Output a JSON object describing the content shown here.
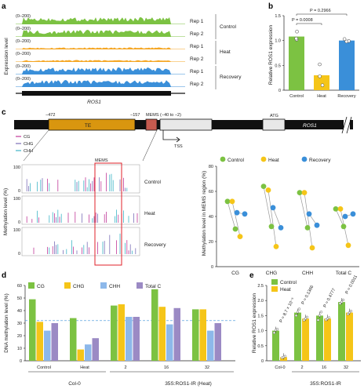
{
  "panels": {
    "a": "a",
    "b": "b",
    "c": "c",
    "d": "d",
    "e": "e"
  },
  "panel_a": {
    "ylabel": "Expression level",
    "range_label": "(0–200)",
    "tracks": [
      {
        "rep": "Rep 1",
        "group": "Control",
        "color": "#7cc242"
      },
      {
        "rep": "Rep 2",
        "group": "Control",
        "color": "#7cc242"
      },
      {
        "rep": "Rep 1",
        "group": "Heat",
        "color": "#f5a623"
      },
      {
        "rep": "Rep 2",
        "group": "Heat",
        "color": "#f5a623"
      },
      {
        "rep": "Rep 1",
        "group": "Recovery",
        "color": "#3a8fd9"
      },
      {
        "rep": "Rep 2",
        "group": "Recovery",
        "color": "#3a8fd9"
      }
    ],
    "groups": [
      "Control",
      "Heat",
      "Recovery"
    ],
    "gene": "ROS1"
  },
  "panel_c": {
    "coords": [
      "−472",
      "−157"
    ],
    "te_label": "TE",
    "mems_label": "MEMS (−40 to −2)",
    "atg_label": "ATG",
    "gene_label": "ROS1",
    "tss_label": "TSS",
    "context_legend": [
      {
        "label": "CG",
        "color": "#c03a9a"
      },
      {
        "label": "CHG",
        "color": "#7b6fb8"
      },
      {
        "label": "CHH",
        "color": "#3fb5c7"
      }
    ],
    "track_ylabel": "Methylation level (%)",
    "track_ticks": [
      "100",
      "0"
    ],
    "track_names": [
      "Control",
      "Heat",
      "Recovery"
    ],
    "mems_box": "MEMS"
  },
  "colors": {
    "control": "#7cc242",
    "heat": "#f5c518",
    "recovery": "#3a8fd9",
    "total": "#9b8ac4",
    "chh_d": "#8db8ea"
  },
  "chart_data": [
    {
      "id": "b",
      "type": "bar",
      "categories": [
        "Control",
        "Heat",
        "Recovery"
      ],
      "values": [
        1.08,
        0.3,
        1.0
      ],
      "points": [
        [
          1.18,
          1.02,
          1.04
        ],
        [
          0.52,
          0.28,
          0.1
        ],
        [
          1.03,
          0.99,
          0.98
        ]
      ],
      "ylabel": "Relative ROS1 expression",
      "ylim": [
        0,
        1.5
      ],
      "yticks": [
        "0",
        "0.5",
        "1.0",
        "1.5"
      ],
      "annotations": [
        "P = 0.2966",
        "P = 0.0008"
      ]
    },
    {
      "id": "c-right",
      "type": "scatter",
      "categories": [
        "CG",
        "CHG",
        "CHH",
        "Total C"
      ],
      "series": [
        {
          "name": "Control",
          "pairs": [
            [
              52,
              30
            ],
            [
              64,
              32
            ],
            [
              59,
              31
            ],
            [
              46,
              32
            ]
          ]
        },
        {
          "name": "Heat",
          "pairs": [
            [
              52,
              24
            ],
            [
              61,
              16
            ],
            [
              59,
              15
            ],
            [
              46,
              17
            ]
          ]
        },
        {
          "name": "Recovery",
          "pairs": [
            [
              43,
              42
            ],
            [
              47,
              31
            ],
            [
              42,
              33
            ],
            [
              40,
              42
            ]
          ]
        }
      ],
      "ylabel": "Methylation level in MEMS region (%)",
      "ylim": [
        0,
        80
      ],
      "yticks": [
        "0",
        "20",
        "40",
        "60",
        "80"
      ],
      "legend": [
        "Control",
        "Heat",
        "Recovery"
      ]
    },
    {
      "id": "d",
      "type": "bar",
      "categories": [
        "Control",
        "Heat",
        "2",
        "16",
        "32"
      ],
      "series": [
        {
          "name": "CG",
          "values": [
            49,
            34,
            44,
            57,
            41
          ]
        },
        {
          "name": "CHG",
          "values": [
            31,
            9,
            45,
            43,
            41
          ]
        },
        {
          "name": "CHH",
          "values": [
            24,
            13,
            35,
            29,
            24
          ]
        },
        {
          "name": "Total C",
          "values": [
            30,
            18,
            35,
            42,
            30
          ]
        }
      ],
      "group_labels": [
        "Col-0",
        "35S:ROS1-IR (Heat)"
      ],
      "ylabel": "DNA methylation level (%)",
      "ylim": [
        0,
        60
      ],
      "yticks": [
        "0",
        "10",
        "20",
        "30",
        "40",
        "50",
        "60"
      ],
      "reference_line": 32
    },
    {
      "id": "e",
      "type": "bar",
      "categories": [
        "Col-0",
        "2",
        "16",
        "32"
      ],
      "series": [
        {
          "name": "Control",
          "values": [
            1.0,
            1.6,
            1.5,
            1.95
          ],
          "points": [
            [
              0.93,
              1.02,
              1.05
            ],
            [
              1.5,
              1.62,
              1.72
            ],
            [
              1.35,
              1.5,
              1.62
            ],
            [
              1.9,
              1.95,
              2.02
            ]
          ]
        },
        {
          "name": "Heat",
          "values": [
            0.12,
            1.4,
            1.4,
            1.6
          ],
          "points": [
            [
              0.1,
              0.12,
              0.15
            ],
            [
              1.35,
              1.4,
              1.45
            ],
            [
              1.36,
              1.4,
              1.43
            ],
            [
              1.55,
              1.6,
              1.65
            ]
          ]
        }
      ],
      "group_label": "35S:ROS1-IR",
      "ylabel": "Relative ROS1 expression",
      "ylim": [
        0,
        2.5
      ],
      "yticks": [
        "0",
        "0.5",
        "1.0",
        "1.5",
        "2.0",
        "2.5"
      ],
      "annotations": [
        "P = 8.7 × 10⁻⁶",
        "P = 0.1366",
        "P = 0.4777",
        "P = 0.0011"
      ],
      "legend": [
        "Control",
        "Heat"
      ]
    }
  ]
}
